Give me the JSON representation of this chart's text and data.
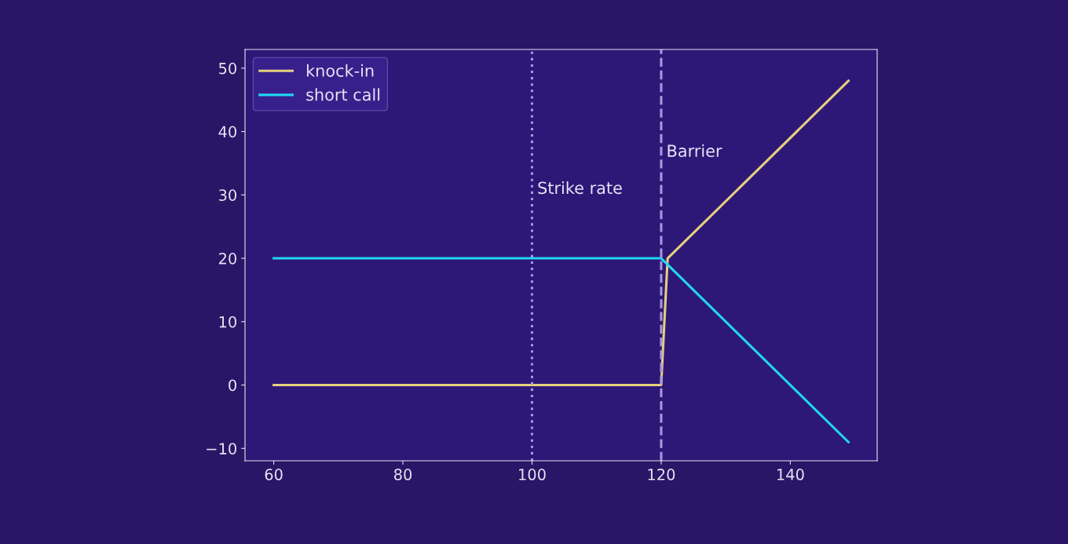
{
  "chart_data": {
    "type": "line",
    "series": [
      {
        "name": "knock-in",
        "color": "#e6cf7e",
        "x": [
          60,
          120,
          121,
          149
        ],
        "values": [
          0,
          0,
          20,
          48
        ]
      },
      {
        "name": "short call",
        "color": "#22d6f0",
        "x": [
          60,
          120,
          121,
          149
        ],
        "values": [
          20,
          20,
          19,
          -9
        ]
      }
    ],
    "xlim": [
      55.55,
      153.45
    ],
    "xticks": [
      60,
      80,
      100,
      120,
      140
    ],
    "ylim": [
      -11.95,
      52.95
    ],
    "yticks": [
      {
        "value": -10,
        "label": "−10"
      },
      0,
      10,
      20,
      30,
      40,
      50
    ],
    "ref_lines": [
      {
        "axis": "x",
        "value": 100,
        "label": "Strike rate",
        "color": "#a898dc",
        "line_style": "dotted"
      },
      {
        "axis": "x",
        "value": 120,
        "label": "Barrier",
        "color": "#a898dc",
        "line_style": "dashed"
      }
    ],
    "legend": "top left",
    "grid": false
  }
}
